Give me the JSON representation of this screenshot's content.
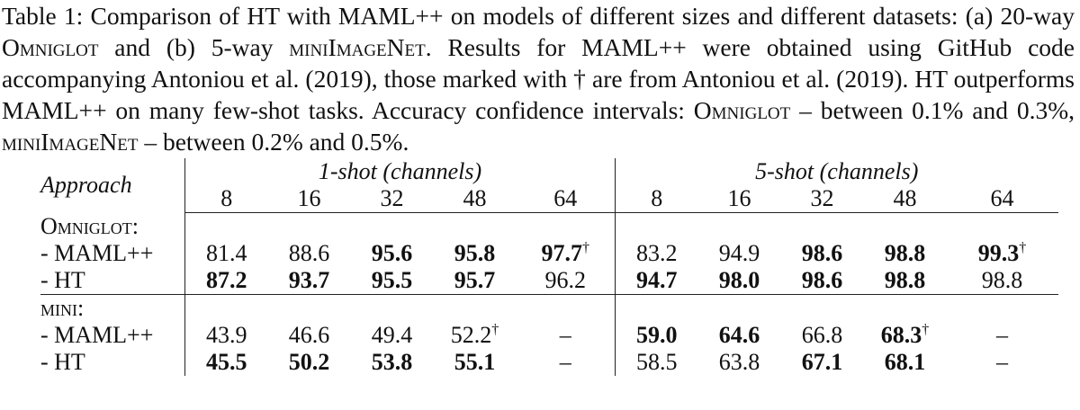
{
  "caption": {
    "segments": [
      {
        "text": "Table 1:  Comparison of HT with MAML++ on models of different sizes and different datasets: (a) 20-way "
      },
      {
        "text": "Omniglot",
        "smallcaps": true
      },
      {
        "text": " and (b) 5-way "
      },
      {
        "text": "miniImageNet",
        "smallcaps": true
      },
      {
        "text": ".  Results for MAML++ were obtained using GitHub code accompanying Antoniou et al. (2019), those marked with † are from Antoniou et al. (2019). HT outperforms MAML++ on many few-shot tasks. Accuracy confidence intervals: "
      },
      {
        "text": "Omniglot",
        "smallcaps": true
      },
      {
        "text": " – between 0.1% and 0.3%, "
      },
      {
        "text": "miniImageNet",
        "smallcaps": true
      },
      {
        "text": " – between 0.2% and 0.5%."
      }
    ]
  },
  "table": {
    "approach_header": "Approach",
    "groups": [
      {
        "label": "1-shot (channels)",
        "channels": [
          "8",
          "16",
          "32",
          "48",
          "64"
        ]
      },
      {
        "label": "5-shot (channels)",
        "channels": [
          "8",
          "16",
          "32",
          "48",
          "64"
        ]
      }
    ],
    "dagger": "†",
    "sections": [
      {
        "label": "Omniglot:",
        "rows": [
          {
            "name": "- MAML++",
            "cells": [
              {
                "text": "81.4"
              },
              {
                "text": "88.6"
              },
              {
                "text": "95.6",
                "bold": true
              },
              {
                "text": "95.8",
                "bold": true
              },
              {
                "text": "97.7",
                "bold": true,
                "dagger": true
              },
              {
                "text": "83.2"
              },
              {
                "text": "94.9"
              },
              {
                "text": "98.6",
                "bold": true
              },
              {
                "text": "98.8",
                "bold": true
              },
              {
                "text": "99.3",
                "bold": true,
                "dagger": true
              }
            ]
          },
          {
            "name": "- HT",
            "cells": [
              {
                "text": "87.2",
                "bold": true
              },
              {
                "text": "93.7",
                "bold": true
              },
              {
                "text": "95.5",
                "bold": true
              },
              {
                "text": "95.7",
                "bold": true
              },
              {
                "text": "96.2"
              },
              {
                "text": "94.7",
                "bold": true
              },
              {
                "text": "98.0",
                "bold": true
              },
              {
                "text": "98.6",
                "bold": true
              },
              {
                "text": "98.8",
                "bold": true
              },
              {
                "text": "98.8"
              }
            ]
          }
        ]
      },
      {
        "label": "mini:",
        "rows": [
          {
            "name": "- MAML++",
            "cells": [
              {
                "text": "43.9"
              },
              {
                "text": "46.6"
              },
              {
                "text": "49.4"
              },
              {
                "text": "52.2",
                "dagger": true
              },
              {
                "text": "–"
              },
              {
                "text": "59.0",
                "bold": true
              },
              {
                "text": "64.6",
                "bold": true
              },
              {
                "text": "66.8"
              },
              {
                "text": "68.3",
                "bold": true,
                "dagger": true
              },
              {
                "text": "–"
              }
            ]
          },
          {
            "name": "- HT",
            "cells": [
              {
                "text": "45.5",
                "bold": true
              },
              {
                "text": "50.2",
                "bold": true
              },
              {
                "text": "53.8",
                "bold": true
              },
              {
                "text": "55.1",
                "bold": true
              },
              {
                "text": "–"
              },
              {
                "text": "58.5"
              },
              {
                "text": "63.8"
              },
              {
                "text": "67.1",
                "bold": true
              },
              {
                "text": "68.1",
                "bold": true
              },
              {
                "text": "–"
              }
            ]
          }
        ]
      }
    ]
  }
}
